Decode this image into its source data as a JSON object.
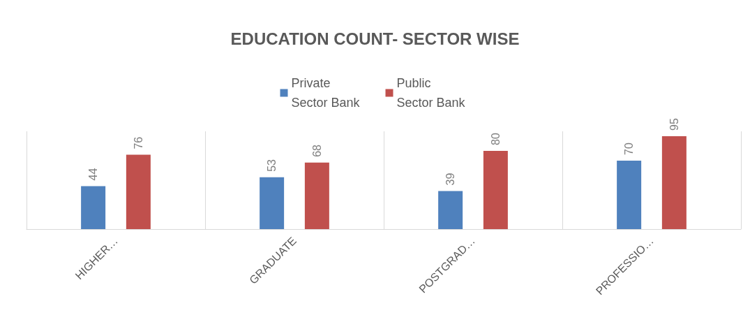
{
  "chart_data": {
    "type": "bar",
    "title": "EDUCATION COUNT- SECTOR WISE",
    "categories": [
      "HIGHER…",
      "GRADUATE",
      "POSTGRAD…",
      "PROFESSIO…"
    ],
    "series": [
      {
        "name": "Private Sector Bank",
        "color": "#4f81bd",
        "values": [
          44,
          53,
          39,
          70
        ]
      },
      {
        "name": "Public Sector Bank",
        "color": "#c0504d",
        "values": [
          76,
          68,
          80,
          95
        ]
      }
    ],
    "data_labels": true,
    "legend": "top",
    "grid": "x"
  }
}
